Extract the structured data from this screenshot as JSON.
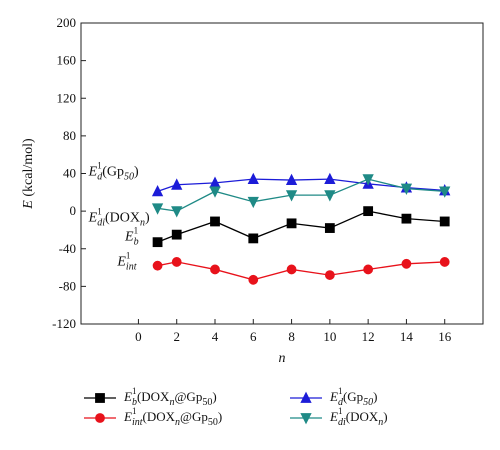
{
  "chart_data": {
    "type": "line",
    "xlabel": "n",
    "ylabel": "E (kcal/mol)",
    "xlim": [
      -3,
      18
    ],
    "ylim": [
      -120,
      200
    ],
    "xticks": [
      0,
      2,
      4,
      6,
      8,
      10,
      12,
      14,
      16
    ],
    "yticks": [
      -120,
      -80,
      -40,
      0,
      40,
      80,
      120,
      160,
      200
    ],
    "grid": false,
    "legend_position": "bottom",
    "series": [
      {
        "name": "E_b^1(DOX_n@Gp_50)",
        "legend_label": {
          "base": "E",
          "sup": "1",
          "sub": "b",
          "rest": "(DOX",
          "rest_sub": "n",
          "rest2": "@Gp",
          "rest2_sub": "50",
          "tail": ")"
        },
        "color": "#000000",
        "marker": "square",
        "x": [
          1,
          2,
          4,
          6,
          8,
          10,
          12,
          14,
          16
        ],
        "y": [
          -33,
          -25,
          -11,
          -29,
          -13,
          -18,
          0,
          -8,
          -11
        ]
      },
      {
        "name": "E_int^1(DOX_n@Gp_50)",
        "legend_label": {
          "base": "E",
          "sup": "1",
          "sub": "int",
          "rest": "(DOX",
          "rest_sub": "n",
          "rest2": "@Gp",
          "rest2_sub": "50",
          "tail": ")"
        },
        "color": "#e8121b",
        "marker": "circle",
        "x": [
          1,
          2,
          4,
          6,
          8,
          10,
          12,
          14,
          16
        ],
        "y": [
          -58,
          -54,
          -62,
          -73,
          -62,
          -68,
          -62,
          -56,
          -54
        ]
      },
      {
        "name": "E_d^1(Gp_50)",
        "legend_label": {
          "base": "E",
          "sup": "1",
          "sub": "d",
          "rest": "(Gp",
          "rest_sub": "50",
          "rest2": ")",
          "rest2_sub": "",
          "tail": ""
        },
        "color": "#1c1cd8",
        "marker": "triangle-up",
        "x": [
          1,
          2,
          4,
          6,
          8,
          10,
          12,
          14,
          16
        ],
        "y": [
          21,
          28,
          30,
          34,
          33,
          34,
          29,
          25,
          22
        ]
      },
      {
        "name": "E_di^1(DOX_n)",
        "legend_label": {
          "base": "E",
          "sup": "1",
          "sub": "di",
          "rest": "(DOX",
          "rest_sub": "n",
          "rest2": ")",
          "rest2_sub": "",
          "tail": ""
        },
        "color": "#1f8a86",
        "marker": "triangle-down",
        "x": [
          1,
          2,
          4,
          6,
          8,
          10,
          12,
          14,
          16
        ],
        "y": [
          3,
          0,
          21,
          10,
          17,
          17,
          34,
          24,
          21
        ]
      }
    ],
    "annotations": [
      {
        "base": "E",
        "sup": "1",
        "sub": "d",
        "rest": "(Gp",
        "rest_sub": "50",
        "tail": ")",
        "x": -2.6,
        "y": 38
      },
      {
        "base": "E",
        "sup": "1",
        "sub": "di",
        "rest": "(DOX",
        "rest_sub": "n",
        "tail": ")",
        "x": -2.6,
        "y": -11
      },
      {
        "base": "E",
        "sup": "1",
        "sub": "b",
        "rest": "",
        "rest_sub": "",
        "tail": "",
        "x": -0.7,
        "y": -31
      },
      {
        "base": "E",
        "sup": "1",
        "sub": "int",
        "rest": "",
        "rest_sub": "",
        "tail": "",
        "x": -1.1,
        "y": -58
      }
    ]
  }
}
